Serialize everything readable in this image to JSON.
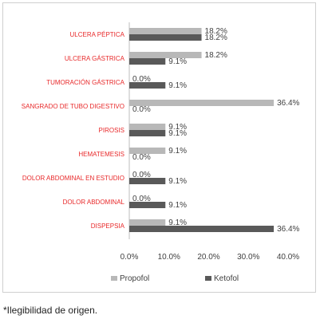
{
  "chart_data": {
    "type": "bar",
    "orientation": "horizontal",
    "categories": [
      "ULCERA PÉPTICA",
      "ULCERA GÁSTRICA",
      "TUMORACIÓN GÁSTRICA",
      "SANGRADO DE TUBO DIGESTIVO",
      "PIROSIS",
      "HEMATEMESIS",
      "DOLOR ABDOMINAL EN ESTUDIO",
      "DOLOR ABDOMINAL",
      "DISPEPSIA"
    ],
    "series": [
      {
        "name": "Propofol",
        "values": [
          18.2,
          18.2,
          0.0,
          36.4,
          9.1,
          9.1,
          0.0,
          0.0,
          9.1
        ],
        "labels": [
          "18.2%",
          "18.2%",
          "0.0%",
          "36.4%",
          "9.1%",
          "9.1%",
          "0.0%",
          "0.0%",
          "9.1%"
        ]
      },
      {
        "name": "Ketofol",
        "values": [
          18.2,
          9.1,
          9.1,
          0.0,
          9.1,
          0.0,
          9.1,
          9.1,
          36.4
        ],
        "labels": [
          "18.2%",
          "9.1%",
          "9.1%",
          "0.0%",
          "9.1%",
          "0.0%",
          "9.1%",
          "9.1%",
          "36.4%"
        ]
      }
    ],
    "xlim": [
      0,
      40
    ],
    "xticks": [
      "0.0%",
      "10.0%",
      "20.0%",
      "30.0%",
      "40.0%"
    ],
    "grid": false,
    "legend_position": "bottom",
    "colors": {
      "Propofol": "#b8b8b8",
      "Ketofol": "#595959",
      "category_label": "#e8292a"
    }
  },
  "footnote": "*Ilegibilidad de origen."
}
